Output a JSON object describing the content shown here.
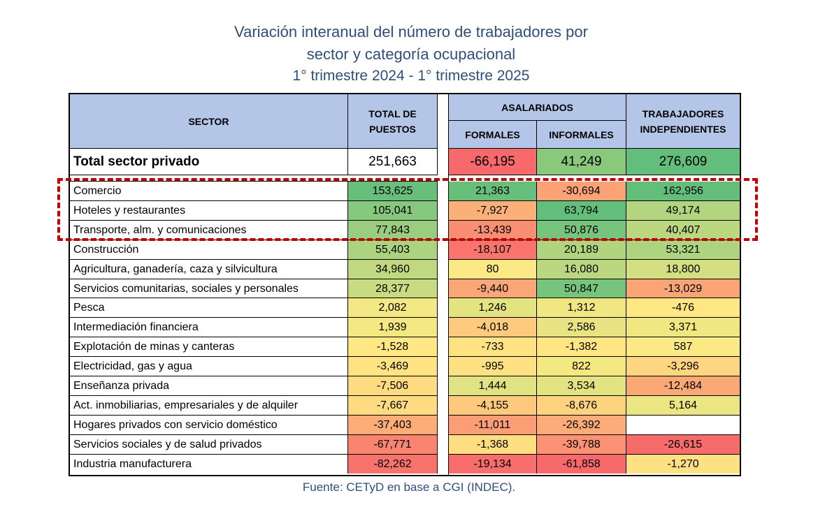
{
  "title": {
    "line1": "Variación interanual del número de trabajadores por",
    "line2": "sector y categoría ocupacional",
    "line3": "1° trimestre 2024 - 1° trimestre 2025"
  },
  "headers": {
    "sector": "SECTOR",
    "total": "TOTAL DE PUESTOS",
    "asalariados": "ASALARIADOS",
    "formales": "FORMALES",
    "informales": "INFORMALES",
    "independientes": "TRABAJADORES INDEPENDIENTES"
  },
  "total_row": {
    "label": "Total sector privado",
    "total": "251,663",
    "formales": "-66,195",
    "informales": "41,249",
    "independientes": "276,609"
  },
  "colors": {
    "header_bg": "#b4c6e7",
    "highlight_border": "#c00000",
    "title_text": "#2e4f7a"
  },
  "chart_data": {
    "type": "table",
    "title": "Variación interanual del número de trabajadores por sector y categoría ocupacional",
    "subtitle": "1° trimestre 2024 - 1° trimestre 2025",
    "columns": [
      "TOTAL DE PUESTOS",
      "FORMALES",
      "INFORMALES",
      "TRABAJADORES INDEPENDIENTES"
    ],
    "highlighted_rows": [
      "Comercio",
      "Hoteles y restaurantes",
      "Transporte, alm. y comunicaciones"
    ],
    "rows": [
      {
        "sector": "Comercio",
        "total": "153,625",
        "formales": "21,363",
        "informales": "-30,694",
        "independientes": "162,956"
      },
      {
        "sector": "Hoteles y restaurantes",
        "total": "105,041",
        "formales": "-7,927",
        "informales": "63,794",
        "independientes": "49,174"
      },
      {
        "sector": "Transporte, alm. y comunicaciones",
        "total": "77,843",
        "formales": "-13,439",
        "informales": "50,876",
        "independientes": "40,407"
      },
      {
        "sector": "Construcción",
        "total": "55,403",
        "formales": "-18,107",
        "informales": "20,189",
        "independientes": "53,321"
      },
      {
        "sector": "Agricultura, ganadería, caza y silvicultura",
        "total": "34,960",
        "formales": "80",
        "informales": "16,080",
        "independientes": "18,800"
      },
      {
        "sector": "Servicios comunitarias, sociales y personales",
        "total": "28,377",
        "formales": "-9,440",
        "informales": "50,847",
        "independientes": "-13,029"
      },
      {
        "sector": "Pesca",
        "total": "2,082",
        "formales": "1,246",
        "informales": "1,312",
        "independientes": "-476"
      },
      {
        "sector": "Intermediación financiera",
        "total": "1,939",
        "formales": "-4,018",
        "informales": "2,586",
        "independientes": "3,371"
      },
      {
        "sector": "Explotación de minas y canteras",
        "total": "-1,528",
        "formales": "-733",
        "informales": "-1,382",
        "independientes": "587"
      },
      {
        "sector": "Electricidad, gas y agua",
        "total": "-3,469",
        "formales": "-995",
        "informales": "822",
        "independientes": "-3,296"
      },
      {
        "sector": "Enseñanza privada",
        "total": "-7,506",
        "formales": "1,444",
        "informales": "3,534",
        "independientes": "-12,484"
      },
      {
        "sector": "Act. inmobiliarias, empresariales y de alquiler",
        "total": "-7,667",
        "formales": "-4,155",
        "informales": "-8,676",
        "independientes": "5,164"
      },
      {
        "sector": "Hogares privados con servicio doméstico",
        "total": "-37,403",
        "formales": "-11,011",
        "informales": "-26,392",
        "independientes": ""
      },
      {
        "sector": "Servicios sociales y de salud privados",
        "total": "-67,771",
        "formales": "-1,368",
        "informales": "-39,788",
        "independientes": "-26,615"
      },
      {
        "sector": "Industria manufacturera",
        "total": "-82,262",
        "formales": "-19,134",
        "informales": "-61,858",
        "independientes": "-1,270"
      }
    ]
  },
  "source": "Fuente: CETyD en base a CGI (INDEC)."
}
